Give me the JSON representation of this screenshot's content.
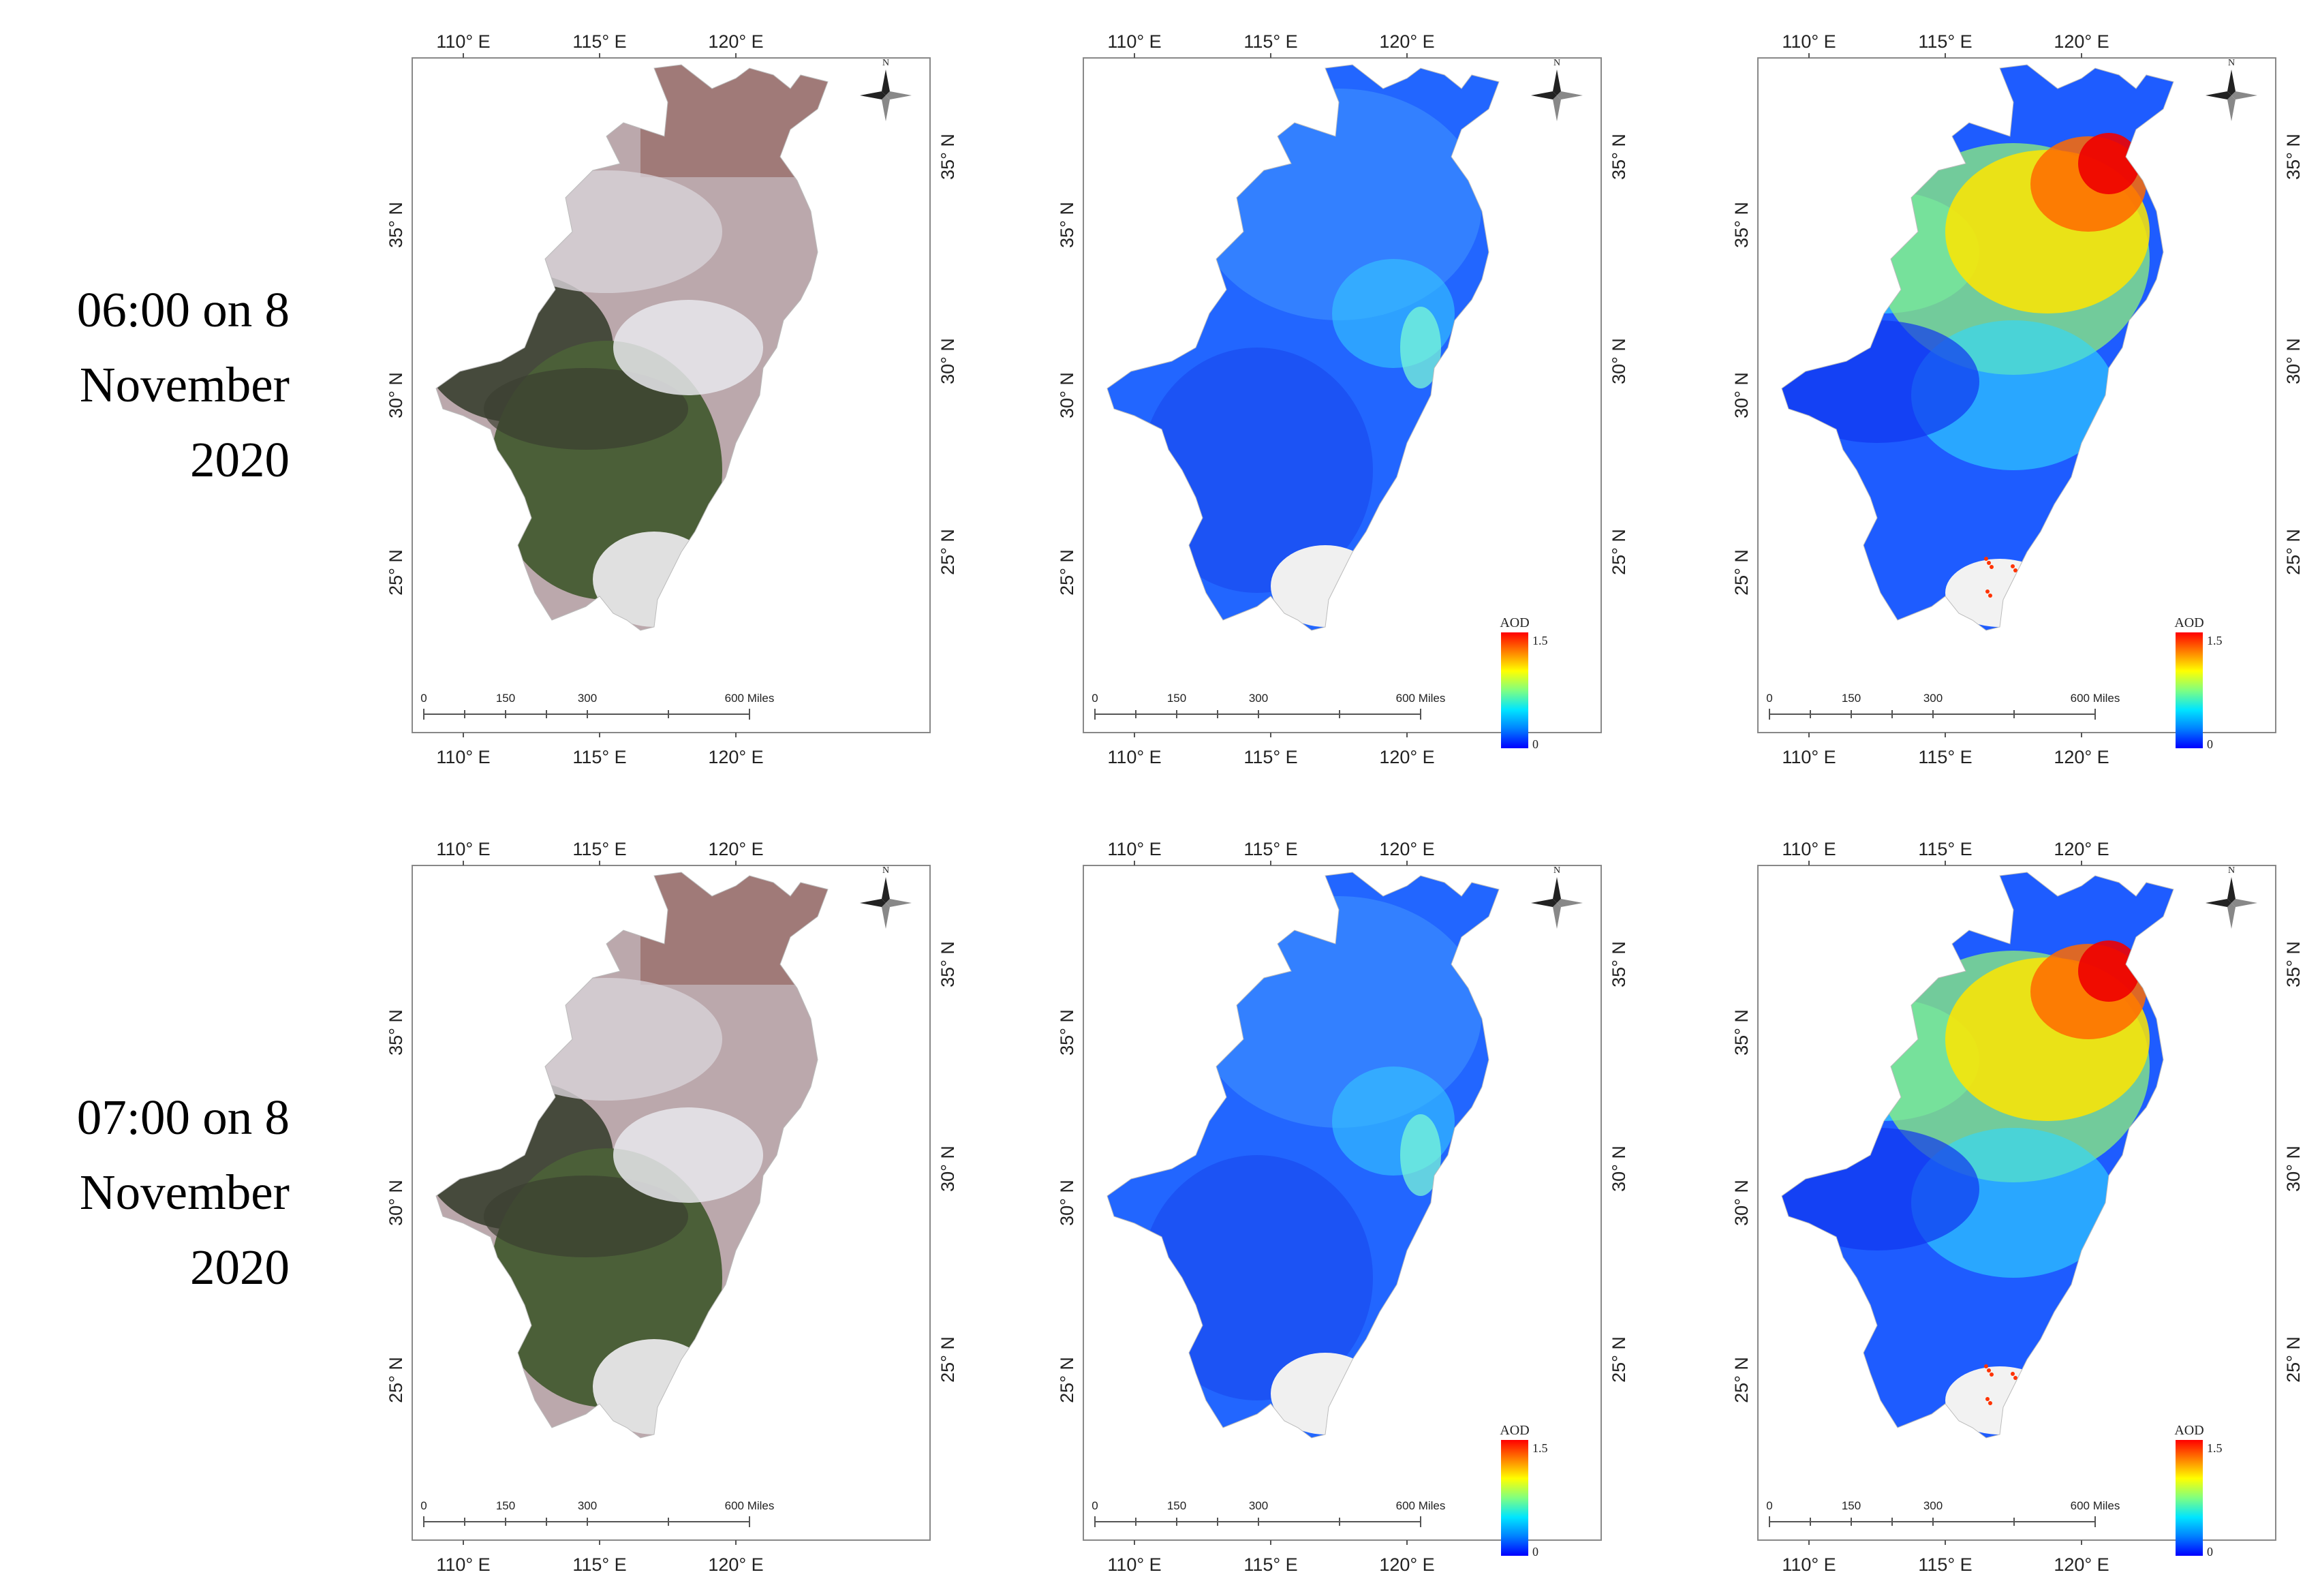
{
  "rows": [
    {
      "label_lines": [
        "06:00 on 8",
        "November",
        "2020"
      ]
    },
    {
      "label_lines": [
        "07:00 on 8",
        "November",
        "2020"
      ]
    }
  ],
  "columns": [
    {
      "kind": "true-color"
    },
    {
      "kind": "aod-low"
    },
    {
      "kind": "aod-high"
    }
  ],
  "axes": {
    "lon_ticks": [
      "110° E",
      "115° E",
      "120° E"
    ],
    "lat_ticks": [
      "35° N",
      "30° N",
      "25° N"
    ]
  },
  "legend": {
    "title": "AOD",
    "max": "1.5",
    "min": "0"
  },
  "scale_bar": {
    "labels": [
      "0",
      "150",
      "300",
      "600 Miles"
    ]
  },
  "north_arrow": {
    "label": "N"
  },
  "colors": {
    "aod_ramp": [
      "#0000ff",
      "#0080ff",
      "#00e5ff",
      "#80ff80",
      "#ffff00",
      "#ff8000",
      "#ff0000"
    ],
    "true_color": {
      "plain": "#bba8ac",
      "mountain": "#3a3f30",
      "forest": "#4b5f38",
      "coast_snow": "#e0e0e0",
      "north": "#9a6e6c"
    }
  }
}
